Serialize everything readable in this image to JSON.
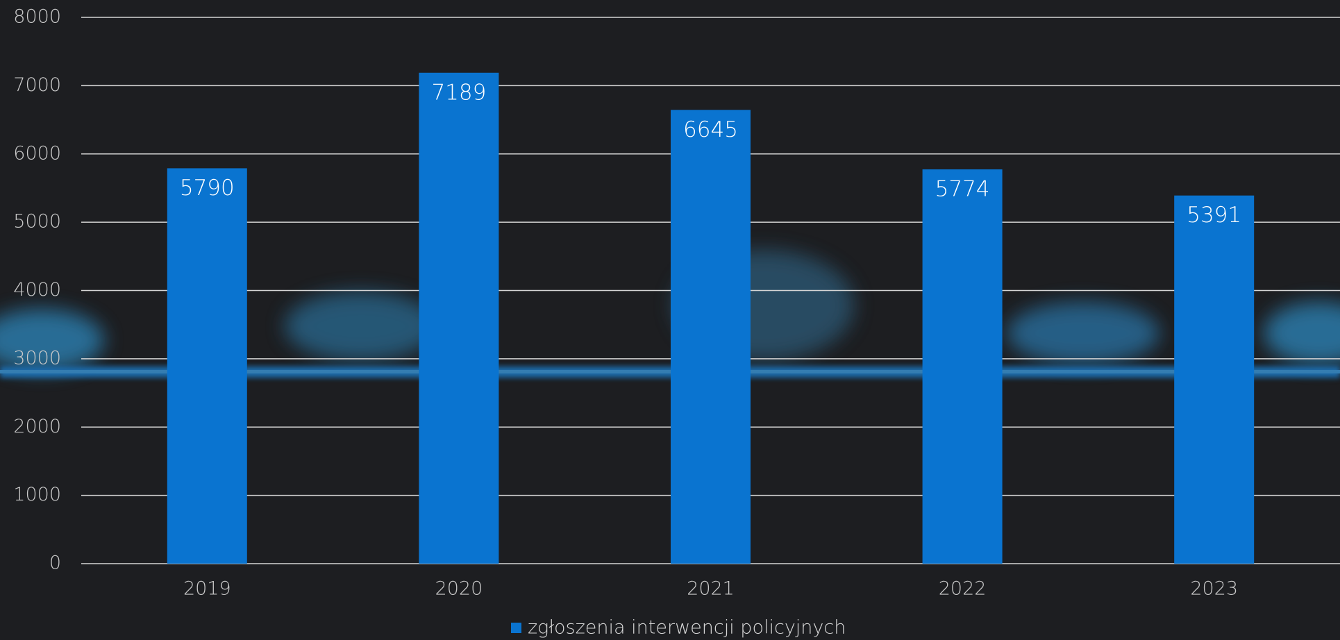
{
  "chart_data": {
    "type": "bar",
    "categories": [
      "2019",
      "2020",
      "2021",
      "2022",
      "2023"
    ],
    "series": [
      {
        "name": "zgłoszenia interwencji policyjnych",
        "color": "#0a74d0",
        "values": [
          5790,
          7189,
          6645,
          5774,
          5391
        ]
      }
    ],
    "ylim": [
      0,
      8000
    ],
    "yticks": [
      0,
      1000,
      2000,
      3000,
      4000,
      5000,
      6000,
      7000,
      8000
    ],
    "grid": true,
    "legend": "bottom"
  }
}
